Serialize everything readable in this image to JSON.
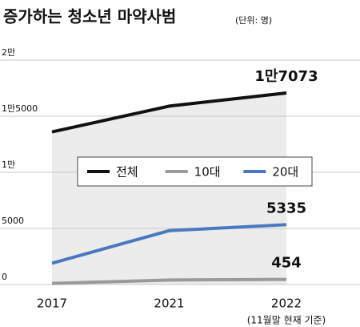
{
  "chart_data": {
    "type": "line",
    "title": "증가하는 청소년 마약사범",
    "subtitle": "(단위: 명)",
    "categories": [
      "2017",
      "2021",
      "2022"
    ],
    "category_note": "(11월말 현재 기준)",
    "series": [
      {
        "name": "전체",
        "color": "#111111",
        "values": [
          13600,
          15900,
          17073
        ],
        "value_labels": [
          null,
          null,
          "1만7073"
        ],
        "area_color": "#ececec"
      },
      {
        "name": "10대",
        "color": "#9a9a9a",
        "values": [
          100,
          400,
          454
        ],
        "value_labels": [
          null,
          null,
          "454"
        ]
      },
      {
        "name": "20대",
        "color": "#4a78c0",
        "values": [
          1900,
          4800,
          5335
        ],
        "value_labels": [
          null,
          null,
          "5335"
        ]
      }
    ],
    "ylim": [
      0,
      20000
    ],
    "yticks": [
      0,
      5000,
      {
        "value": 10000,
        "label": "1만"
      },
      {
        "value": 15000,
        "label": "1만5000"
      },
      {
        "value": 20000,
        "label": "2만"
      }
    ],
    "grid": true,
    "legend": "center"
  }
}
